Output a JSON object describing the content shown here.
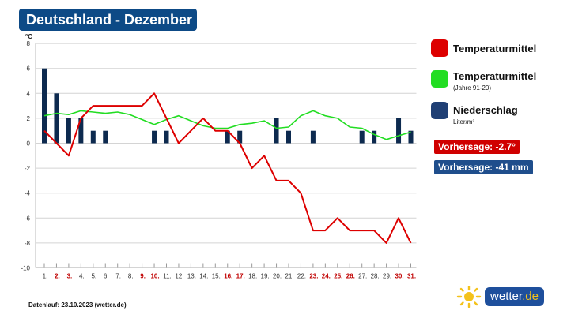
{
  "title": "Deutschland - Dezember",
  "legend": {
    "temp": "Temperaturmittel",
    "temp_ref": "Temperaturmittel",
    "temp_ref_sub": "(Jahre 91-20)",
    "precip": "Niederschlag",
    "precip_sub": "Liter/m²"
  },
  "forecast": {
    "temp": "Vorhersage: -2.7°",
    "precip": "Vorhersage: -41 mm"
  },
  "footer": "Datenlauf: 23.10.2023 (wetter.de)",
  "logo": {
    "text": "wetter",
    "suffix": ".de"
  },
  "colors": {
    "temp": "#dd0000",
    "temp_ref": "#22dd22",
    "precip": "#0d2a4f",
    "title_bg": "#0d4a86",
    "forecast_temp_bg": "#d00000",
    "forecast_precip_bg": "#1f4e8c",
    "weekend_label": "#c00000"
  },
  "chart_data": {
    "type": "line",
    "ylabel": "°C",
    "ylim": [
      -10,
      8
    ],
    "yticks": [
      8,
      6,
      4,
      2,
      0,
      -2,
      -4,
      -6,
      -8,
      -10
    ],
    "x": [
      "1.",
      "2.",
      "3.",
      "4.",
      "5.",
      "6.",
      "7.",
      "8.",
      "9.",
      "10.",
      "11.",
      "12.",
      "13.",
      "14.",
      "15.",
      "16.",
      "17.",
      "18.",
      "19.",
      "20.",
      "21.",
      "22.",
      "23.",
      "24.",
      "25.",
      "26.",
      "27.",
      "28.",
      "29.",
      "30.",
      "31."
    ],
    "highlighted_days": [
      2,
      3,
      9,
      10,
      16,
      17,
      23,
      24,
      25,
      26,
      30,
      31
    ],
    "series": [
      {
        "name": "Temperaturmittel",
        "kind": "line",
        "values": [
          1,
          0,
          -1,
          2,
          3,
          3,
          3,
          3,
          3,
          4,
          2,
          0,
          1,
          2,
          1,
          1,
          0,
          -2,
          -1,
          -3,
          -3,
          -4,
          -7,
          -7,
          -6,
          -7,
          -7,
          -7,
          -8,
          -6,
          -8
        ]
      },
      {
        "name": "Temperaturmittel (Jahre 91-20)",
        "kind": "line",
        "values": [
          2.2,
          2.4,
          2.3,
          2.6,
          2.5,
          2.4,
          2.5,
          2.3,
          1.9,
          1.5,
          1.9,
          2.2,
          1.8,
          1.4,
          1.2,
          1.2,
          1.5,
          1.6,
          1.8,
          1.2,
          1.3,
          2.2,
          2.6,
          2.2,
          2.0,
          1.3,
          1.2,
          0.7,
          0.3,
          0.6,
          0.9
        ]
      },
      {
        "name": "Niederschlag",
        "kind": "bar",
        "values": [
          6,
          4,
          2,
          2,
          1,
          1,
          0,
          0,
          0,
          1,
          1,
          0,
          0,
          0,
          0,
          1,
          1,
          0,
          0,
          2,
          1,
          0,
          1,
          0,
          0,
          0,
          1,
          1,
          0,
          2,
          1
        ]
      }
    ]
  }
}
